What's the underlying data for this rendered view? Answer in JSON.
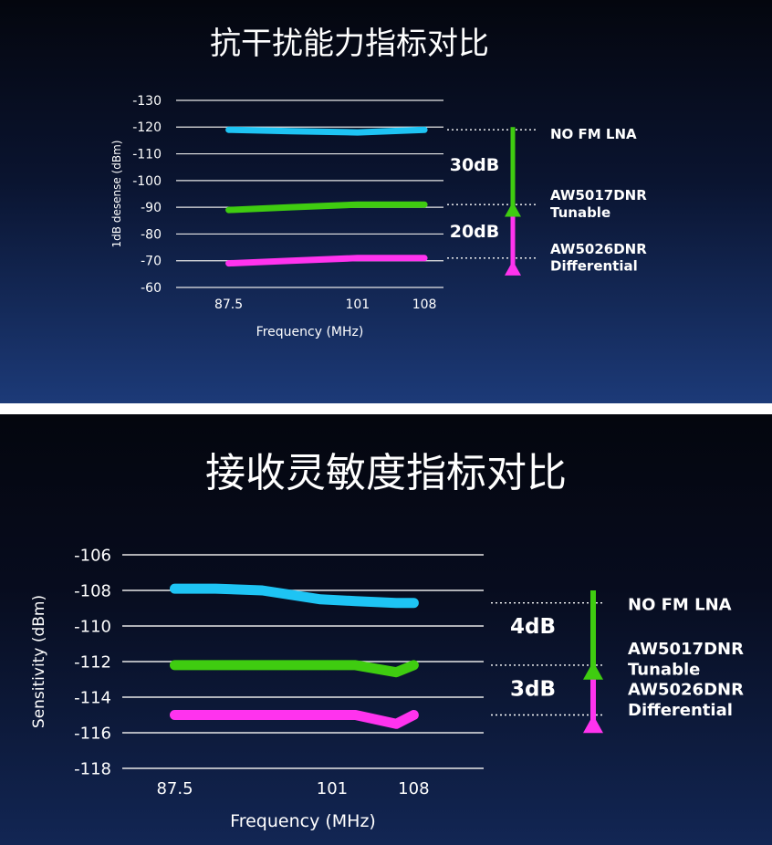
{
  "chart_data": [
    {
      "type": "line",
      "title": "抗干扰能力指标对比",
      "xlabel": "Frequency (MHz)",
      "ylabel": "1dB desense (dBm)",
      "ylim": [
        -130,
        -60
      ],
      "yticks": [
        -60,
        -70,
        -80,
        -90,
        -100,
        -110,
        -120,
        -130
      ],
      "xlim": [
        82,
        110
      ],
      "x_ticks": [
        "87.5",
        "101",
        "108"
      ],
      "x": [
        87.5,
        94,
        101,
        108
      ],
      "series": [
        {
          "name": "AW5026DNR Differential",
          "color": "#ff33ee",
          "values": [
            -69,
            -70,
            -71,
            -71
          ]
        },
        {
          "name": "AW5017DNR Tunable",
          "color": "#3fcc10",
          "values": [
            -89,
            -90,
            -91,
            -91
          ]
        },
        {
          "name": "NO FM LNA",
          "color": "#1ec4f4",
          "values": [
            -119,
            -118.5,
            -118,
            -119
          ]
        }
      ],
      "legend": [
        {
          "line1": "AW5026DNR",
          "line2": "Differential"
        },
        {
          "line1": "AW5017DNR",
          "line2": "Tunable"
        },
        {
          "line1": "NO FM LNA",
          "line2": ""
        }
      ],
      "gaps": [
        {
          "label": "20dB",
          "color": "#ff33ee",
          "from": -92,
          "to": -70
        },
        {
          "label": "30dB",
          "color": "#3fcc10",
          "from": -120,
          "to": -92
        }
      ]
    },
    {
      "type": "line",
      "title": "接收灵敏度指标对比",
      "xlabel": "Frequency (MHz)",
      "ylabel": "Sensitivity (dBm)",
      "ylim": [
        -106,
        -118
      ],
      "yticks": [
        -118,
        -116,
        -114,
        -112,
        -110,
        -108,
        -106
      ],
      "xlim": [
        83,
        114
      ],
      "x_ticks": [
        "87.5",
        "101",
        "108"
      ],
      "x": [
        87.5,
        91,
        95,
        100,
        103,
        106.5,
        108
      ],
      "series": [
        {
          "name": "AW5026DNR Differential",
          "color": "#ff33ee",
          "values": [
            -115,
            -115,
            -115,
            -115,
            -115,
            -115.5,
            -115
          ]
        },
        {
          "name": "AW5017DNR Tunable",
          "color": "#3fcc10",
          "values": [
            -112.2,
            -112.2,
            -112.2,
            -112.2,
            -112.2,
            -112.6,
            -112.2
          ]
        },
        {
          "name": "NO FM LNA",
          "color": "#1ec4f4",
          "values": [
            -107.9,
            -107.9,
            -108,
            -108.5,
            -108.6,
            -108.7,
            -108.7
          ]
        }
      ],
      "legend": [
        {
          "line1": "AW5026DNR",
          "line2": "Differential"
        },
        {
          "line1": "AW5017DNR",
          "line2": "Tunable"
        },
        {
          "line1": "NO FM LNA",
          "line2": ""
        }
      ],
      "gaps": [
        {
          "label": "3dB",
          "color": "#ff33ee",
          "from": -112,
          "to": -115
        },
        {
          "label": "4dB",
          "color": "#3fcc10",
          "from": -108,
          "to": -112
        }
      ]
    }
  ]
}
